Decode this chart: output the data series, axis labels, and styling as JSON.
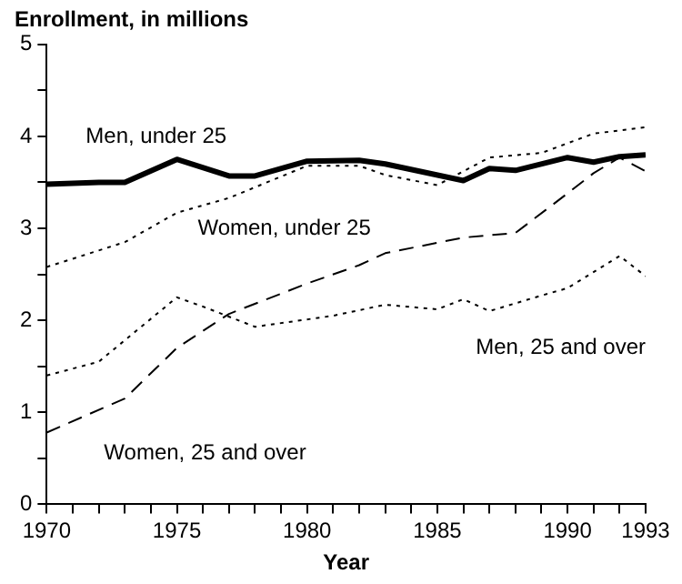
{
  "chart_data": {
    "type": "line",
    "title": "Enrollment, in millions",
    "xlabel": "Year",
    "xlim": [
      1970,
      1993
    ],
    "xticks": [
      1970,
      {
        "value": 1971,
        "label": null
      },
      {
        "value": 1972,
        "label": null
      },
      {
        "value": 1973,
        "label": null
      },
      {
        "value": 1974,
        "label": null
      },
      1975,
      {
        "value": 1976,
        "label": null
      },
      {
        "value": 1977,
        "label": null
      },
      {
        "value": 1978,
        "label": null
      },
      {
        "value": 1979,
        "label": null
      },
      1980,
      {
        "value": 1981,
        "label": null
      },
      {
        "value": 1982,
        "label": null
      },
      {
        "value": 1983,
        "label": null
      },
      {
        "value": 1984,
        "label": null
      },
      1985,
      {
        "value": 1986,
        "label": null
      },
      {
        "value": 1987,
        "label": null
      },
      {
        "value": 1988,
        "label": null
      },
      {
        "value": 1989,
        "label": null
      },
      1990,
      {
        "value": 1991,
        "label": null
      },
      {
        "value": 1992,
        "label": null
      },
      1993
    ],
    "ylim": [
      0,
      5
    ],
    "yticks": [
      0,
      {
        "value": 0.5,
        "label": null
      },
      1,
      {
        "value": 1.5,
        "label": null
      },
      2,
      {
        "value": 2.5,
        "label": null
      },
      3,
      {
        "value": 3.5,
        "label": null
      },
      4,
      {
        "value": 4.5,
        "label": null
      },
      5
    ],
    "grid": false,
    "legend": false,
    "marker": "none",
    "series": [
      {
        "name": "Men, under 25",
        "color": "#000000",
        "line_style": "solid",
        "x": [
          1970,
          1972,
          1973,
          1975,
          1977,
          1978,
          1980,
          1982,
          1983,
          1986,
          1987,
          1988,
          1990,
          1991,
          1992,
          1993
        ],
        "values": [
          3.48,
          3.5,
          3.5,
          3.75,
          3.57,
          3.57,
          3.73,
          3.74,
          3.7,
          3.52,
          3.65,
          3.63,
          3.77,
          3.72,
          3.78,
          3.8
        ]
      },
      {
        "name": "Women, under 25",
        "color": "#000000",
        "line_style": "dotted",
        "x": [
          1970,
          1973,
          1975,
          1977,
          1980,
          1982,
          1983,
          1985,
          1987,
          1989,
          1991,
          1993
        ],
        "values": [
          2.58,
          2.85,
          3.17,
          3.33,
          3.68,
          3.68,
          3.58,
          3.47,
          3.77,
          3.82,
          4.03,
          4.1
        ]
      },
      {
        "name": "Men, 25 and over",
        "color": "#000000",
        "line_style": "dotted",
        "x": [
          1970,
          1972,
          1975,
          1976,
          1978,
          1981,
          1983,
          1985,
          1986,
          1987,
          1989,
          1990,
          1992,
          1993
        ],
        "values": [
          1.4,
          1.55,
          2.25,
          2.15,
          1.93,
          2.05,
          2.17,
          2.12,
          2.23,
          2.1,
          2.27,
          2.35,
          2.7,
          2.48
        ]
      },
      {
        "name": "Women, 25 and over",
        "color": "#000000",
        "line_style": "dashed",
        "x": [
          1970,
          1973,
          1975,
          1977,
          1980,
          1982,
          1983,
          1986,
          1988,
          1990,
          1991,
          1992,
          1993
        ],
        "values": [
          0.78,
          1.15,
          1.7,
          2.07,
          2.4,
          2.6,
          2.73,
          2.9,
          2.95,
          3.38,
          3.6,
          3.77,
          3.62
        ]
      }
    ]
  }
}
